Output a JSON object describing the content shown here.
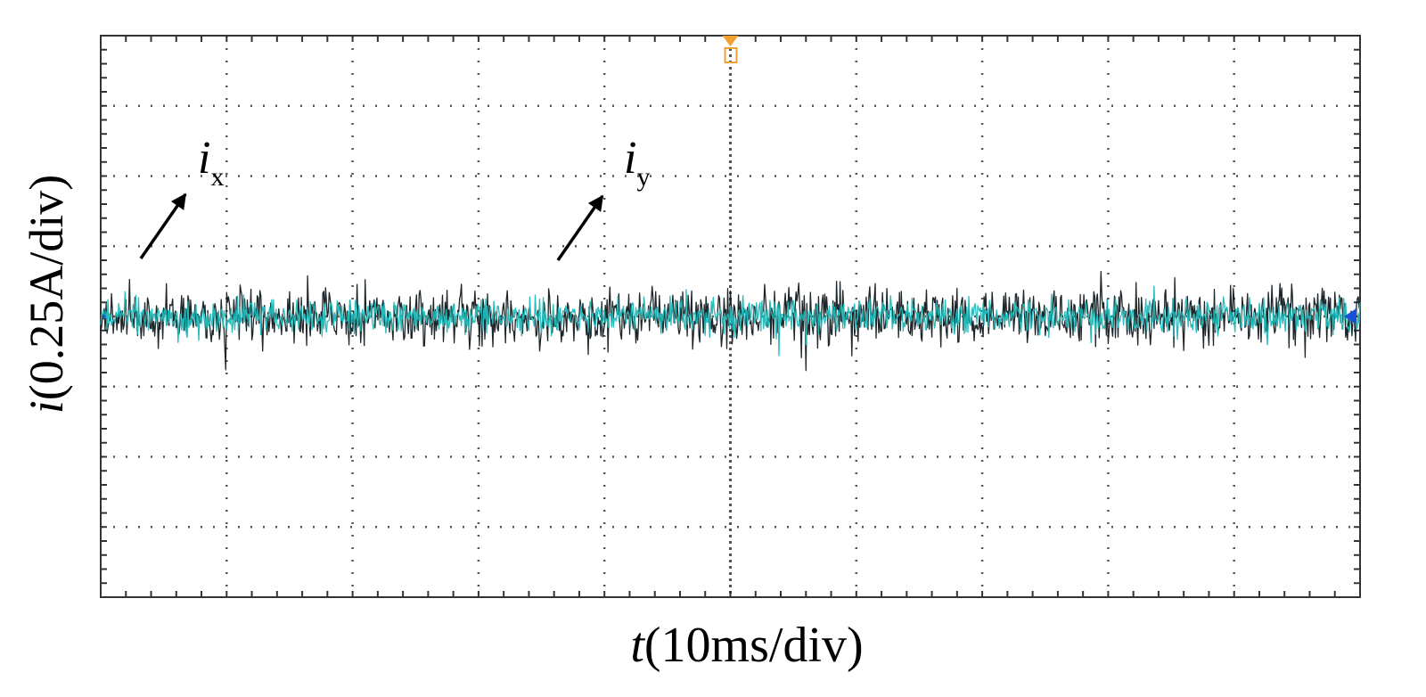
{
  "chart_data": {
    "type": "line",
    "title": "",
    "xlabel": {
      "symbol": "t",
      "unit": "(10ms/div)"
    },
    "ylabel": {
      "symbol": "i",
      "unit": "(0.25A/div)"
    },
    "x_scale_per_div": "10ms",
    "y_scale_per_div": "0.25A",
    "divisions": {
      "x": 10,
      "y": 8
    },
    "grid": true,
    "ground_level_div": 4,
    "series": [
      {
        "name": "ix",
        "symbol": "i",
        "subscript": "x",
        "color": "#111a1f",
        "mean_div": 4.0,
        "noise_pp_div": 1.15
      },
      {
        "name": "iy",
        "symbol": "i",
        "subscript": "y",
        "color": "#1fb8b8",
        "mean_div": 4.0,
        "noise_pp_div": 0.7
      }
    ],
    "annotations": [
      {
        "symbol": "i",
        "subscript": "x",
        "target_series": "ix"
      },
      {
        "symbol": "i",
        "subscript": "y",
        "target_series": "iy"
      }
    ],
    "trigger_marker_color": "#f2a030",
    "level_marker_color": "#1a4fd6"
  }
}
